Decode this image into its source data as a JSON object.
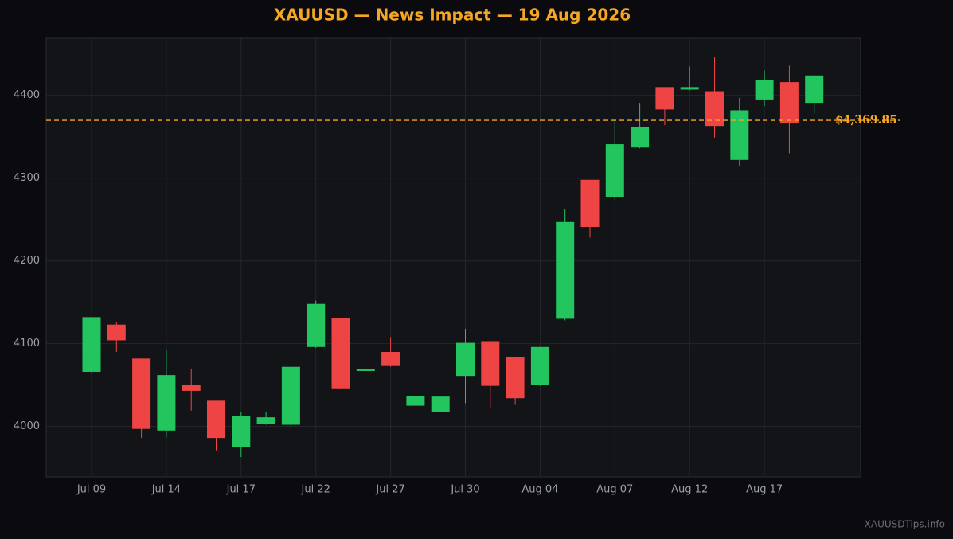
{
  "chart_data": {
    "type": "candlestick",
    "title": "XAUUSD — News Impact — 19 Aug 2026",
    "watermark": "XAUUSDTips.info",
    "categories": [
      "Jul 09",
      null,
      null,
      "Jul 14",
      null,
      null,
      "Jul 17",
      null,
      null,
      "Jul 22",
      null,
      null,
      "Jul 27",
      null,
      null,
      "Jul 30",
      null,
      null,
      "Aug 04",
      null,
      null,
      "Aug 07",
      null,
      null,
      "Aug 12",
      null,
      null,
      "Aug 17",
      null,
      null
    ],
    "open": [
      4066,
      4123,
      4082,
      3995,
      4050,
      4031,
      3975,
      4003,
      4002,
      4096,
      4131,
      4067,
      4090,
      4025,
      4017,
      4061,
      4103,
      4084,
      4050,
      4130,
      4298,
      4277,
      4337,
      4410,
      4407,
      4405,
      4322,
      4395,
      4416,
      4391
    ],
    "high": [
      4132,
      4126,
      4082,
      4092,
      4070,
      4031,
      4017,
      4018,
      4072,
      4152,
      4131,
      4069,
      4108,
      4037,
      4036,
      4118,
      4103,
      4084,
      4096,
      4263,
      4298,
      4370,
      4391,
      4410,
      4435,
      4446,
      4397,
      4430,
      4436,
      4424
    ],
    "low": [
      4064,
      4090,
      3986,
      3987,
      4019,
      3971,
      3963,
      4002,
      3998,
      4095,
      4046,
      4067,
      4072,
      4025,
      4017,
      4028,
      4022,
      4026,
      4049,
      4128,
      4228,
      4274,
      4336,
      4364,
      4406,
      4349,
      4315,
      4387,
      4330,
      4378
    ],
    "close": [
      4132,
      4104,
      3997,
      4062,
      4043,
      3986,
      4013,
      4011,
      4072,
      4148,
      4046,
      4069,
      4073,
      4037,
      4036,
      4101,
      4049,
      4034,
      4096,
      4247,
      4241,
      4341,
      4362,
      4383,
      4410,
      4363,
      4382,
      4419,
      4366,
      4424
    ],
    "up_color": "#22c55e",
    "down_color": "#ef4444",
    "ylim": [
      3939,
      4469
    ],
    "yticks": [
      4000,
      4100,
      4200,
      4300,
      4400
    ],
    "grid": true,
    "ref_line": {
      "value": 4369.85,
      "label": "$4,369.85",
      "color": "#f5a623"
    }
  }
}
